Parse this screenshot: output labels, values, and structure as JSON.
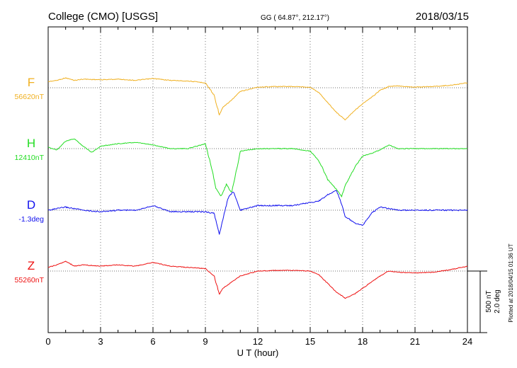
{
  "header": {
    "title": "College (CMO)  [USGS]",
    "coords": "GG ( 64.87°, 212.17°)",
    "date": "2018/03/15"
  },
  "footer": {
    "plotted": "Plotted at 2018/04/15 01:36 UT"
  },
  "chart_data": {
    "type": "line",
    "title": "College (CMO)  [USGS]",
    "xlabel": "U T (hour)",
    "ylabel": "",
    "xlim": [
      0,
      24
    ],
    "x_ticks": [
      0,
      3,
      6,
      9,
      12,
      15,
      18,
      21,
      24
    ],
    "x_tick_labels": [
      "0",
      "3",
      "6",
      "9",
      "12",
      "15",
      "18",
      "21",
      "24"
    ],
    "grid": true,
    "scale_bar": {
      "nT": "500 nT",
      "deg": "2.0 deg"
    },
    "series": [
      {
        "name": "F",
        "baseline_label": "56620nT",
        "color": "#f0b020",
        "x": [
          0,
          0.5,
          1,
          1.5,
          2,
          3,
          4,
          5,
          6,
          7,
          8,
          9,
          9.5,
          9.8,
          10,
          10.5,
          11,
          12,
          13,
          14,
          15,
          15.5,
          16,
          16.5,
          17,
          17.5,
          18,
          18.5,
          19,
          19.5,
          20,
          21,
          22,
          23,
          24
        ],
        "y": [
          -50,
          -60,
          -80,
          -60,
          -70,
          -65,
          -70,
          -60,
          -75,
          -60,
          -55,
          -40,
          60,
          220,
          160,
          100,
          30,
          -5,
          -10,
          -10,
          -5,
          40,
          120,
          200,
          260,
          190,
          130,
          80,
          20,
          -10,
          -15,
          -5,
          -10,
          -20,
          -40
        ]
      },
      {
        "name": "H",
        "baseline_label": "12410nT",
        "color": "#22dd22",
        "x": [
          0,
          0.5,
          1,
          1.5,
          2,
          2.5,
          3,
          4,
          5,
          6,
          7,
          8,
          9,
          9.3,
          9.6,
          9.9,
          10.2,
          10.5,
          10.8,
          11,
          12,
          13,
          14,
          15,
          15.5,
          16,
          16.5,
          16.8,
          17,
          17.3,
          17.6,
          18,
          18.5,
          19,
          19.5,
          20,
          21,
          22,
          23,
          24
        ],
        "y": [
          -10,
          10,
          -60,
          -80,
          -20,
          30,
          -20,
          -40,
          -50,
          -30,
          0,
          0,
          -40,
          120,
          320,
          390,
          290,
          360,
          160,
          20,
          0,
          0,
          0,
          20,
          100,
          250,
          330,
          390,
          300,
          220,
          140,
          60,
          40,
          10,
          -30,
          0,
          0,
          0,
          0,
          0
        ]
      },
      {
        "name": "D",
        "baseline_label": "-1.3deg",
        "color": "#1010ee",
        "x": [
          0,
          1,
          2,
          3,
          4,
          5,
          6,
          7,
          8,
          9,
          9.5,
          9.8,
          10,
          10.3,
          10.6,
          11,
          12,
          13,
          14,
          15,
          15.5,
          16,
          16.5,
          16.8,
          17,
          17.5,
          18,
          18.5,
          19,
          20,
          21,
          22,
          23,
          24
        ],
        "y": [
          0,
          -0.1,
          0,
          0.05,
          0,
          0,
          -0.15,
          0.05,
          0.05,
          0.05,
          0.1,
          0.8,
          0.3,
          -0.4,
          -0.6,
          0,
          -0.15,
          -0.15,
          -0.15,
          -0.25,
          -0.3,
          -0.5,
          -0.65,
          -0.2,
          0.2,
          0.4,
          0.5,
          0.1,
          -0.1,
          0,
          0,
          0,
          0,
          0
        ]
      },
      {
        "name": "Z",
        "baseline_label": "55260nT",
        "color": "#ee1111",
        "x": [
          0,
          0.5,
          1,
          1.5,
          2,
          3,
          4,
          5,
          6,
          7,
          8,
          9,
          9.5,
          9.8,
          10,
          10.5,
          11,
          12,
          13,
          14,
          15,
          15.5,
          16,
          16.5,
          17,
          17.5,
          18,
          18.5,
          19,
          19.5,
          20,
          21,
          22,
          23,
          24
        ],
        "y": [
          -30,
          -50,
          -80,
          -40,
          -50,
          -40,
          -50,
          -40,
          -70,
          -40,
          -30,
          -20,
          40,
          190,
          140,
          90,
          40,
          0,
          -5,
          -5,
          0,
          30,
          100,
          170,
          220,
          190,
          140,
          90,
          40,
          0,
          10,
          15,
          10,
          -10,
          -40
        ]
      }
    ]
  }
}
